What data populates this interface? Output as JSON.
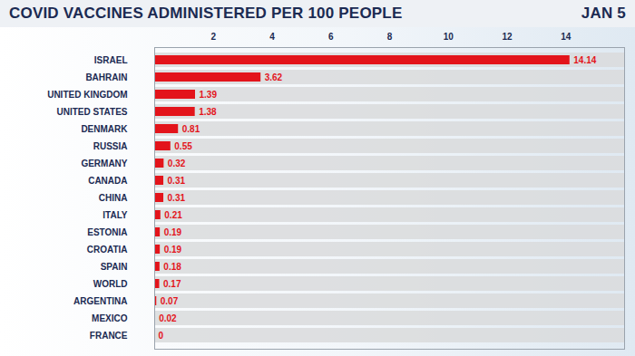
{
  "chart_data": {
    "type": "bar",
    "title": "COVID VACCINES ADMINISTERED PER 100 PEOPLE",
    "subtitle": "JAN 5",
    "orientation": "horizontal",
    "categories": [
      "ISRAEL",
      "BAHRAIN",
      "UNITED KINGDOM",
      "UNITED STATES",
      "DENMARK",
      "RUSSIA",
      "GERMANY",
      "CANADA",
      "CHINA",
      "ITALY",
      "ESTONIA",
      "CROATIA",
      "SPAIN",
      "WORLD",
      "ARGENTINA",
      "MEXICO",
      "FRANCE"
    ],
    "values": [
      14.14,
      3.62,
      1.39,
      1.38,
      0.81,
      0.55,
      0.32,
      0.31,
      0.31,
      0.21,
      0.19,
      0.19,
      0.18,
      0.17,
      0.07,
      0.02,
      0
    ],
    "color": "#e3141b",
    "xlim": [
      0,
      16
    ],
    "xticks": [
      2,
      4,
      6,
      8,
      10,
      12,
      14
    ],
    "grid": false,
    "data_labels": true
  }
}
